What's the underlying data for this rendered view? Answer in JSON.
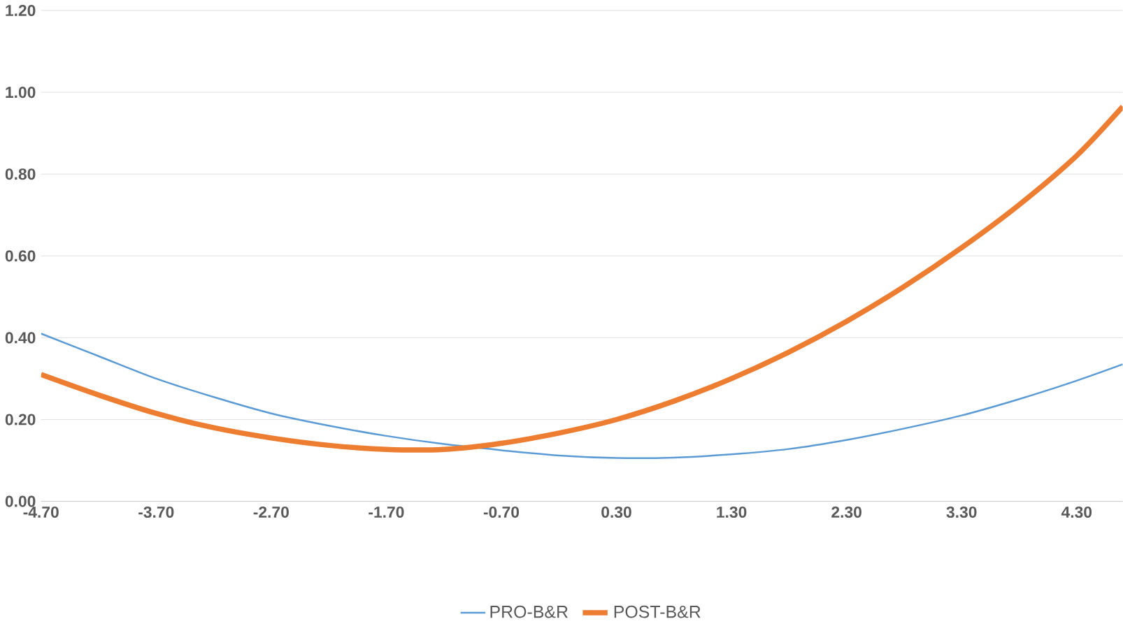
{
  "chart_data": {
    "type": "line",
    "x": [
      -4.7,
      -4.2,
      -3.7,
      -3.2,
      -2.7,
      -2.2,
      -1.7,
      -1.2,
      -0.7,
      -0.2,
      0.3,
      0.8,
      1.3,
      1.8,
      2.3,
      2.8,
      3.3,
      3.8,
      4.3,
      4.7
    ],
    "series": [
      {
        "name": "PRO-B&R",
        "color": "#5b9bd5",
        "values": [
          0.41,
          0.355,
          0.3,
          0.255,
          0.215,
          0.185,
          0.16,
          0.14,
          0.125,
          0.112,
          0.106,
          0.107,
          0.115,
          0.128,
          0.15,
          0.178,
          0.21,
          0.25,
          0.295,
          0.335
        ]
      },
      {
        "name": "POST-B&R",
        "color": "#ed7d31",
        "values": [
          0.31,
          0.26,
          0.215,
          0.18,
          0.155,
          0.137,
          0.127,
          0.127,
          0.142,
          0.167,
          0.2,
          0.245,
          0.3,
          0.365,
          0.44,
          0.525,
          0.62,
          0.725,
          0.845,
          0.965
        ]
      }
    ],
    "xlim": [
      -4.7,
      4.7
    ],
    "xticks": [
      {
        "value": -4.7,
        "label": "-4.70"
      },
      {
        "value": -3.7,
        "label": "-3.70"
      },
      {
        "value": -2.7,
        "label": "-2.70"
      },
      {
        "value": -1.7,
        "label": "-1.70"
      },
      {
        "value": -0.7,
        "label": "-0.70"
      },
      {
        "value": 0.3,
        "label": "0.30"
      },
      {
        "value": 1.3,
        "label": "1.30"
      },
      {
        "value": 2.3,
        "label": "2.30"
      },
      {
        "value": 3.3,
        "label": "3.30"
      },
      {
        "value": 4.3,
        "label": "4.30"
      }
    ],
    "ylim": [
      0,
      1.2
    ],
    "yticks": [
      {
        "value": 0,
        "label": "0.00"
      },
      {
        "value": 0.2,
        "label": "0.20"
      },
      {
        "value": 0.4,
        "label": "0.40"
      },
      {
        "value": 0.6,
        "label": "0.60"
      },
      {
        "value": 0.8,
        "label": "0.80"
      },
      {
        "value": 1.0,
        "label": "1.00"
      },
      {
        "value": 1.2,
        "label": "1.20"
      }
    ],
    "grid": "y",
    "legend": "bottom",
    "line_style": "solid",
    "marker": "none"
  }
}
